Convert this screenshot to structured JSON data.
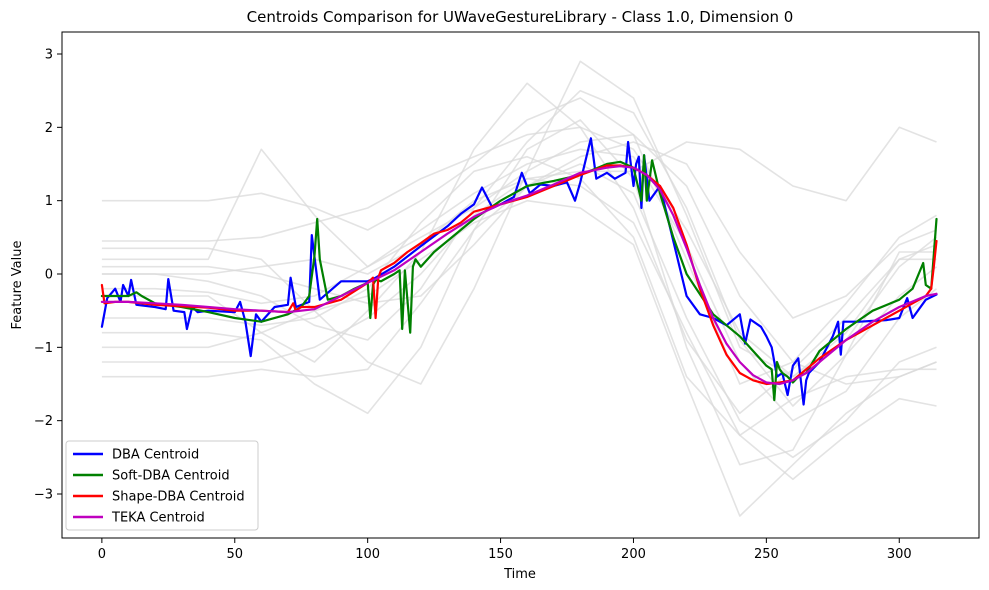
{
  "chart_data": {
    "type": "line",
    "title": "Centroids Comparison for UWaveGestureLibrary - Class 1.0, Dimension 0",
    "xlabel": "Time",
    "ylabel": "Feature Value",
    "xlim": [
      -15,
      330
    ],
    "ylim": [
      -3.6,
      3.3
    ],
    "xticks": [
      0,
      50,
      100,
      150,
      200,
      250,
      300
    ],
    "yticks": [
      -3,
      -2,
      -1,
      0,
      1,
      2,
      3
    ],
    "legend_position": "lower-left",
    "grid": false,
    "background_series": {
      "color": "#d9d9d9",
      "x": [
        0,
        20,
        40,
        60,
        80,
        100,
        120,
        140,
        160,
        180,
        200,
        220,
        240,
        260,
        280,
        300,
        314
      ],
      "series": [
        [
          1.0,
          1.0,
          1.0,
          1.1,
          0.9,
          0.6,
          1.0,
          1.5,
          2.1,
          2.4,
          1.9,
          0.2,
          -1.5,
          -1.2,
          -0.4,
          0.5,
          0.8
        ],
        [
          0.45,
          0.45,
          0.45,
          0.5,
          0.7,
          0.9,
          1.3,
          1.6,
          1.9,
          2.0,
          1.7,
          0.6,
          -0.8,
          -1.4,
          -0.9,
          0.1,
          0.5
        ],
        [
          -0.2,
          -0.2,
          -0.25,
          -0.4,
          -0.3,
          0.1,
          0.6,
          1.1,
          1.5,
          1.7,
          1.6,
          0.4,
          -1.2,
          -2.0,
          -1.6,
          -0.6,
          -0.2
        ],
        [
          -1.4,
          -1.4,
          -1.4,
          -1.3,
          -1.4,
          -1.3,
          -0.4,
          0.6,
          1.2,
          1.5,
          1.1,
          -0.6,
          -2.0,
          -2.5,
          -2.0,
          -1.2,
          -1.0
        ],
        [
          0.2,
          0.2,
          0.2,
          1.7,
          0.8,
          0.1,
          0.5,
          0.9,
          1.4,
          1.8,
          1.9,
          1.2,
          -0.3,
          -1.2,
          -1.5,
          -1.4,
          -1.2
        ],
        [
          -0.8,
          -0.8,
          -0.8,
          -0.9,
          -1.5,
          -1.9,
          -1.0,
          0.6,
          1.7,
          2.1,
          1.3,
          -1.0,
          -2.6,
          -2.4,
          -1.1,
          -0.3,
          0.1
        ],
        [
          0.0,
          0.0,
          -0.1,
          -0.3,
          -0.7,
          -0.9,
          -0.2,
          0.9,
          1.8,
          2.5,
          2.2,
          0.9,
          -0.9,
          -1.8,
          -1.1,
          0.3,
          0.3
        ],
        [
          -1.2,
          -1.2,
          -1.2,
          -1.2,
          -1.0,
          -0.6,
          0.0,
          0.8,
          1.3,
          1.2,
          0.7,
          -0.8,
          -2.2,
          -2.8,
          -2.2,
          -1.7,
          -1.8
        ],
        [
          0.35,
          0.35,
          0.35,
          0.2,
          -0.5,
          -1.2,
          -1.5,
          -0.2,
          1.4,
          2.9,
          2.4,
          0.8,
          -1.0,
          -1.4,
          -0.8,
          0.2,
          0.4
        ],
        [
          -0.6,
          -0.6,
          -0.6,
          -0.7,
          -0.6,
          -0.2,
          0.7,
          1.4,
          1.6,
          1.3,
          0.5,
          -1.4,
          -2.2,
          -1.7,
          -1.4,
          -1.3,
          -1.3
        ],
        [
          0.1,
          0.1,
          0.1,
          0.0,
          -0.2,
          -0.4,
          -0.3,
          0.4,
          1.2,
          1.6,
          1.8,
          1.5,
          0.3,
          -0.6,
          -0.3,
          0.4,
          0.6
        ],
        [
          -0.3,
          -0.3,
          -0.3,
          -0.8,
          -1.2,
          -0.5,
          0.3,
          1.7,
          2.6,
          2.0,
          0.9,
          -0.9,
          -1.9,
          -1.3,
          -0.6,
          0.2,
          0.2
        ],
        [
          0.0,
          0.0,
          0.0,
          0.1,
          0.2,
          0.0,
          0.4,
          1.0,
          1.3,
          1.4,
          1.4,
          1.8,
          1.7,
          1.2,
          1.0,
          2.0,
          1.8
        ],
        [
          -1.0,
          -1.0,
          -1.0,
          -0.8,
          -0.5,
          -0.3,
          0.2,
          0.7,
          1.0,
          0.9,
          0.4,
          -1.5,
          -3.3,
          -2.6,
          -1.9,
          -1.4,
          -1.2
        ]
      ]
    },
    "series": [
      {
        "name": "DBA Centroid",
        "color": "#0000ff",
        "x": [
          0,
          2,
          5,
          7,
          8,
          10,
          11,
          13,
          20,
          24,
          25,
          27,
          31,
          32,
          34,
          36,
          40,
          50,
          52,
          54,
          56,
          58,
          60,
          65,
          70,
          71,
          73,
          78,
          79,
          82,
          90,
          100,
          103,
          110,
          120,
          130,
          135,
          140,
          143,
          147,
          150,
          155,
          158,
          161,
          165,
          170,
          175,
          178,
          180,
          184,
          186,
          190,
          193,
          197,
          198,
          200,
          201,
          202,
          203,
          204,
          206,
          210,
          220,
          225,
          230,
          235,
          240,
          242,
          244,
          248,
          250,
          252,
          254,
          256,
          258,
          260,
          262,
          264,
          265,
          266,
          270,
          275,
          277,
          278,
          279,
          280,
          285,
          290,
          295,
          300,
          303,
          305,
          310,
          314
        ],
        "y": [
          -0.72,
          -0.33,
          -0.2,
          -0.38,
          -0.15,
          -0.3,
          -0.08,
          -0.42,
          -0.45,
          -0.48,
          -0.07,
          -0.5,
          -0.52,
          -0.75,
          -0.45,
          -0.52,
          -0.5,
          -0.52,
          -0.38,
          -0.65,
          -1.12,
          -0.55,
          -0.65,
          -0.45,
          -0.42,
          -0.05,
          -0.45,
          -0.38,
          0.53,
          -0.35,
          -0.1,
          -0.1,
          -0.05,
          0.1,
          0.38,
          0.65,
          0.82,
          0.95,
          1.18,
          0.9,
          0.95,
          1.05,
          1.38,
          1.1,
          1.22,
          1.2,
          1.25,
          1.0,
          1.25,
          1.85,
          1.3,
          1.38,
          1.3,
          1.38,
          1.8,
          1.2,
          1.5,
          1.6,
          0.9,
          1.62,
          1.0,
          1.2,
          -0.3,
          -0.55,
          -0.6,
          -0.7,
          -0.55,
          -0.95,
          -0.62,
          -0.72,
          -0.85,
          -1.0,
          -1.4,
          -1.35,
          -1.65,
          -1.25,
          -1.15,
          -1.78,
          -1.45,
          -1.35,
          -1.2,
          -0.85,
          -0.65,
          -1.1,
          -0.65,
          -0.65,
          -0.65,
          -0.64,
          -0.63,
          -0.6,
          -0.33,
          -0.6,
          -0.35,
          -0.28
        ]
      },
      {
        "name": "Soft-DBA Centroid",
        "color": "#008000",
        "x": [
          0,
          5,
          10,
          13,
          15,
          20,
          30,
          40,
          50,
          60,
          70,
          75,
          78,
          80,
          81,
          82,
          85,
          90,
          95,
          100,
          101,
          102,
          103,
          105,
          110,
          112,
          113,
          114,
          116,
          117,
          118,
          120,
          125,
          130,
          140,
          150,
          160,
          170,
          180,
          190,
          195,
          200,
          203,
          204,
          205,
          207,
          210,
          215,
          220,
          230,
          240,
          245,
          250,
          252,
          253,
          254,
          255,
          256,
          258,
          260,
          262,
          265,
          270,
          280,
          290,
          300,
          305,
          309,
          310,
          312,
          314
        ],
        "y": [
          -0.3,
          -0.3,
          -0.3,
          -0.25,
          -0.3,
          -0.4,
          -0.45,
          -0.52,
          -0.6,
          -0.65,
          -0.55,
          -0.45,
          -0.3,
          0.25,
          0.75,
          0.2,
          -0.35,
          -0.3,
          -0.2,
          -0.12,
          -0.6,
          -0.15,
          -0.08,
          -0.1,
          0.0,
          0.05,
          -0.75,
          0.05,
          -0.8,
          0.1,
          0.2,
          0.1,
          0.3,
          0.45,
          0.75,
          1.0,
          1.2,
          1.27,
          1.35,
          1.5,
          1.53,
          1.45,
          1.0,
          1.62,
          1.0,
          1.55,
          1.1,
          0.5,
          0.0,
          -0.55,
          -0.85,
          -1.05,
          -1.25,
          -1.3,
          -1.72,
          -1.2,
          -1.3,
          -1.35,
          -1.4,
          -1.48,
          -1.4,
          -1.35,
          -1.05,
          -0.75,
          -0.5,
          -0.35,
          -0.2,
          0.15,
          -0.15,
          -0.2,
          0.75
        ]
      },
      {
        "name": "Shape-DBA Centroid",
        "color": "#ff0000",
        "x": [
          0,
          1,
          5,
          10,
          20,
          30,
          40,
          50,
          60,
          70,
          72,
          73,
          75,
          80,
          90,
          100,
          102,
          103,
          104,
          105,
          110,
          115,
          120,
          125,
          130,
          135,
          140,
          150,
          160,
          170,
          180,
          190,
          195,
          200,
          205,
          210,
          215,
          220,
          225,
          230,
          235,
          240,
          245,
          250,
          255,
          260,
          265,
          270,
          280,
          290,
          300,
          305,
          310,
          312,
          313,
          314
        ],
        "y": [
          -0.15,
          -0.4,
          -0.38,
          -0.38,
          -0.42,
          -0.44,
          -0.46,
          -0.5,
          -0.5,
          -0.52,
          -0.4,
          -0.5,
          -0.45,
          -0.45,
          -0.35,
          -0.12,
          -0.05,
          -0.6,
          -0.05,
          0.05,
          0.15,
          0.3,
          0.42,
          0.55,
          0.6,
          0.7,
          0.85,
          0.95,
          1.05,
          1.2,
          1.35,
          1.48,
          1.48,
          1.45,
          1.35,
          1.2,
          0.9,
          0.4,
          -0.2,
          -0.7,
          -1.1,
          -1.35,
          -1.45,
          -1.5,
          -1.48,
          -1.45,
          -1.3,
          -1.15,
          -0.9,
          -0.7,
          -0.5,
          -0.4,
          -0.3,
          -0.2,
          0.1,
          0.45
        ]
      },
      {
        "name": "TEKA Centroid",
        "color": "#bf00bf",
        "x": [
          0,
          10,
          20,
          30,
          40,
          50,
          60,
          70,
          80,
          90,
          100,
          110,
          120,
          130,
          140,
          150,
          160,
          170,
          180,
          190,
          195,
          200,
          205,
          210,
          215,
          220,
          225,
          230,
          235,
          240,
          245,
          250,
          255,
          260,
          265,
          270,
          280,
          290,
          300,
          310,
          314
        ],
        "y": [
          -0.38,
          -0.38,
          -0.4,
          -0.42,
          -0.45,
          -0.48,
          -0.5,
          -0.52,
          -0.48,
          -0.3,
          -0.12,
          0.05,
          0.3,
          0.55,
          0.78,
          0.95,
          1.07,
          1.22,
          1.38,
          1.45,
          1.47,
          1.45,
          1.35,
          1.15,
          0.8,
          0.35,
          -0.15,
          -0.6,
          -0.95,
          -1.2,
          -1.38,
          -1.48,
          -1.5,
          -1.45,
          -1.35,
          -1.2,
          -0.9,
          -0.65,
          -0.45,
          -0.3,
          -0.27
        ]
      }
    ]
  }
}
